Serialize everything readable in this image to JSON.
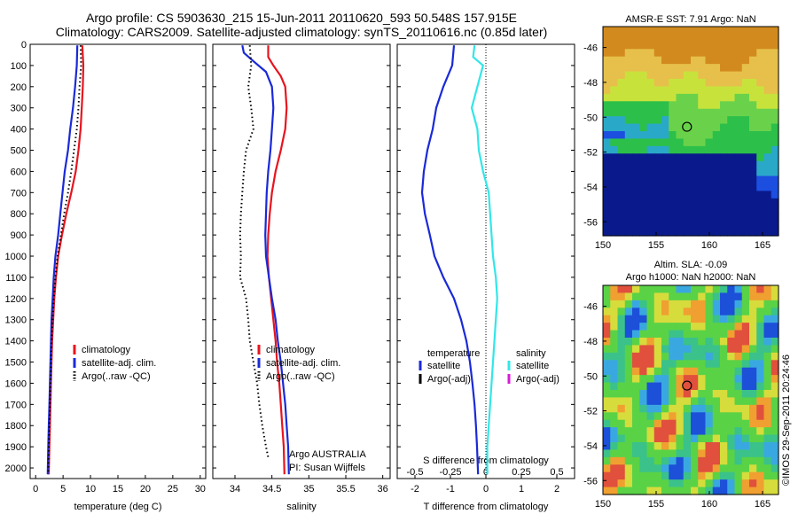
{
  "header": {
    "line1": "Argo profile: CS 5903630_215 15-Jun-2011 20110620_593 50.548S 157.915E",
    "line2": "Climatology: CARS2009. Satellite-adjusted climatology: synTS_20110616.nc (0.85d later)"
  },
  "side_label": "©IMOS 29-Sep-2011 20:24:46",
  "colors": {
    "climatology": "#e8141e",
    "satellite": "#1a2ad8",
    "argo": "#000000",
    "sat_salinity": "#33e6e8",
    "argo_adj_salinity": "#d81ad8"
  },
  "chart_data": [
    {
      "id": "temperature",
      "type": "line",
      "xlabel": "temperature (deg C)",
      "ylabel": "",
      "xlim": [
        -1,
        31
      ],
      "ylim": [
        0,
        2050
      ],
      "y_reversed": true,
      "xticks": [
        "0",
        "5",
        "10",
        "15",
        "20",
        "25",
        "30"
      ],
      "xtick_values": [
        0,
        5,
        10,
        15,
        20,
        25,
        30
      ],
      "yticks": [
        "0",
        "100",
        "200",
        "300",
        "400",
        "500",
        "600",
        "700",
        "800",
        "900",
        "1000",
        "1100",
        "1200",
        "1300",
        "1400",
        "1500",
        "1600",
        "1700",
        "1800",
        "1900",
        "2000"
      ],
      "ytick_values": [
        0,
        100,
        200,
        300,
        400,
        500,
        600,
        700,
        800,
        900,
        1000,
        1100,
        1200,
        1300,
        1400,
        1500,
        1600,
        1700,
        1800,
        1900,
        2000
      ],
      "legend": [
        "climatology",
        "satellite-adj. clim.",
        "Argo(..raw -QC)"
      ],
      "series": [
        {
          "name": "climatology",
          "style": "solid",
          "color": "#e8141e",
          "points": [
            [
              8.5,
              5
            ],
            [
              8.7,
              100
            ],
            [
              8.6,
              200
            ],
            [
              8.4,
              300
            ],
            [
              8.2,
              400
            ],
            [
              7.8,
              500
            ],
            [
              7.3,
              600
            ],
            [
              6.5,
              700
            ],
            [
              5.6,
              800
            ],
            [
              4.8,
              900
            ],
            [
              4.1,
              1000
            ],
            [
              3.7,
              1100
            ],
            [
              3.4,
              1200
            ],
            [
              3.2,
              1300
            ],
            [
              3.0,
              1400
            ],
            [
              2.9,
              1500
            ],
            [
              2.8,
              1600
            ],
            [
              2.7,
              1700
            ],
            [
              2.6,
              1800
            ],
            [
              2.5,
              1900
            ],
            [
              2.4,
              2030
            ]
          ]
        },
        {
          "name": "satellite-adj. clim.",
          "style": "solid",
          "color": "#1a2ad8",
          "points": [
            [
              7.6,
              5
            ],
            [
              7.5,
              100
            ],
            [
              7.2,
              200
            ],
            [
              6.8,
              300
            ],
            [
              6.3,
              400
            ],
            [
              5.9,
              500
            ],
            [
              5.3,
              600
            ],
            [
              4.9,
              700
            ],
            [
              4.5,
              800
            ],
            [
              4.1,
              900
            ],
            [
              3.6,
              1000
            ],
            [
              3.3,
              1100
            ],
            [
              3.1,
              1200
            ],
            [
              2.9,
              1300
            ],
            [
              2.8,
              1400
            ],
            [
              2.7,
              1500
            ],
            [
              2.6,
              1600
            ],
            [
              2.5,
              1700
            ],
            [
              2.4,
              1800
            ],
            [
              2.3,
              1900
            ],
            [
              2.2,
              2030
            ]
          ]
        },
        {
          "name": "Argo(..raw -QC)",
          "style": "dotted",
          "color": "#000000",
          "points": [
            [
              8.2,
              5
            ],
            [
              8.3,
              100
            ],
            [
              8.0,
              200
            ],
            [
              7.8,
              300
            ],
            [
              7.5,
              400
            ],
            [
              7.0,
              500
            ],
            [
              6.5,
              600
            ],
            [
              5.9,
              700
            ],
            [
              5.2,
              800
            ],
            [
              4.6,
              900
            ],
            [
              4.0,
              1000
            ],
            [
              3.6,
              1100
            ],
            [
              3.3,
              1200
            ],
            [
              3.1,
              1300
            ],
            [
              2.9,
              1400
            ],
            [
              2.8,
              1500
            ],
            [
              2.7,
              1600
            ],
            [
              2.6,
              1700
            ],
            [
              2.5,
              1800
            ],
            [
              2.4,
              1900
            ],
            [
              2.3,
              2030
            ]
          ]
        }
      ]
    },
    {
      "id": "salinity",
      "type": "line",
      "xlabel": "salinity",
      "ylabel": "",
      "xlim": [
        33.7,
        36.1
      ],
      "ylim": [
        0,
        2050
      ],
      "y_reversed": true,
      "xticks": [
        "34",
        "34.5",
        "35",
        "35.5",
        "36"
      ],
      "xtick_values": [
        34,
        34.5,
        35,
        35.5,
        36
      ],
      "legend": [
        "climatology",
        "satellite-adj. clim.",
        "Argo(..raw -QC)"
      ],
      "annotations": [
        "Argo AUSTRALIA",
        "PI: Susan Wijffels"
      ],
      "series": [
        {
          "name": "climatology",
          "style": "solid",
          "color": "#e8141e",
          "points": [
            [
              34.45,
              5
            ],
            [
              34.45,
              60
            ],
            [
              34.52,
              100
            ],
            [
              34.62,
              150
            ],
            [
              34.68,
              200
            ],
            [
              34.7,
              300
            ],
            [
              34.68,
              400
            ],
            [
              34.62,
              500
            ],
            [
              34.55,
              600
            ],
            [
              34.5,
              700
            ],
            [
              34.47,
              800
            ],
            [
              34.45,
              900
            ],
            [
              34.44,
              1000
            ],
            [
              34.46,
              1100
            ],
            [
              34.49,
              1200
            ],
            [
              34.52,
              1300
            ],
            [
              34.55,
              1400
            ],
            [
              34.57,
              1500
            ],
            [
              34.6,
              1600
            ],
            [
              34.62,
              1700
            ],
            [
              34.64,
              1800
            ],
            [
              34.66,
              1900
            ],
            [
              34.67,
              2030
            ]
          ]
        },
        {
          "name": "satellite-adj. clim.",
          "style": "solid",
          "color": "#1a2ad8",
          "points": [
            [
              34.1,
              5
            ],
            [
              34.12,
              40
            ],
            [
              34.25,
              80
            ],
            [
              34.42,
              130
            ],
            [
              34.5,
              200
            ],
            [
              34.52,
              300
            ],
            [
              34.5,
              400
            ],
            [
              34.48,
              500
            ],
            [
              34.45,
              600
            ],
            [
              34.43,
              700
            ],
            [
              34.42,
              800
            ],
            [
              34.41,
              900
            ],
            [
              34.42,
              1000
            ],
            [
              34.46,
              1100
            ],
            [
              34.5,
              1200
            ],
            [
              34.55,
              1300
            ],
            [
              34.58,
              1400
            ],
            [
              34.62,
              1500
            ],
            [
              34.65,
              1600
            ],
            [
              34.68,
              1700
            ],
            [
              34.7,
              1800
            ],
            [
              34.72,
              1900
            ],
            [
              34.73,
              2030
            ]
          ]
        },
        {
          "name": "Argo(..raw -QC)",
          "style": "dotted",
          "color": "#000000",
          "points": [
            [
              34.2,
              5
            ],
            [
              34.22,
              100
            ],
            [
              34.18,
              200
            ],
            [
              34.22,
              300
            ],
            [
              34.25,
              400
            ],
            [
              34.15,
              500
            ],
            [
              34.12,
              600
            ],
            [
              34.1,
              700
            ],
            [
              34.08,
              800
            ],
            [
              34.07,
              900
            ],
            [
              34.08,
              1000
            ],
            [
              34.07,
              1100
            ],
            [
              34.15,
              1200
            ],
            [
              34.18,
              1300
            ],
            [
              34.2,
              1400
            ],
            [
              34.25,
              1500
            ],
            [
              34.3,
              1600
            ],
            [
              34.33,
              1700
            ],
            [
              34.37,
              1800
            ],
            [
              34.42,
              1900
            ],
            [
              34.45,
              1950
            ]
          ]
        }
      ]
    },
    {
      "id": "difference",
      "type": "line",
      "xlabel": "T difference from climatology",
      "x2label": "S difference from climatology",
      "xlim": [
        -2.5,
        2.5
      ],
      "x2lim": [
        -0.625,
        0.625
      ],
      "ylim": [
        0,
        2050
      ],
      "y_reversed": true,
      "xticks": [
        "-2",
        "-1",
        "0",
        "1",
        "2"
      ],
      "xtick_values": [
        -2,
        -1,
        0,
        1,
        2
      ],
      "x2ticks": [
        "-0.5",
        "-0.25",
        "0",
        "0.25",
        "0.5"
      ],
      "x2tick_values": [
        -0.5,
        -0.25,
        0,
        0.25,
        0.5
      ],
      "legend_left": {
        "title": "temperature",
        "items": [
          "satellite",
          "Argo(-adj)"
        ]
      },
      "legend_right": {
        "title": "salinity",
        "items": [
          "satellite",
          "Argo(-adj)"
        ]
      },
      "series": [
        {
          "name": "satellite",
          "group": "temperature",
          "style": "solid",
          "color": "#1a2ad8",
          "points": [
            [
              -0.9,
              5
            ],
            [
              -0.95,
              100
            ],
            [
              -1.2,
              200
            ],
            [
              -1.4,
              300
            ],
            [
              -1.5,
              400
            ],
            [
              -1.65,
              500
            ],
            [
              -1.75,
              600
            ],
            [
              -1.8,
              700
            ],
            [
              -1.72,
              800
            ],
            [
              -1.58,
              900
            ],
            [
              -1.45,
              1000
            ],
            [
              -1.2,
              1100
            ],
            [
              -0.9,
              1200
            ],
            [
              -0.7,
              1300
            ],
            [
              -0.55,
              1400
            ],
            [
              -0.45,
              1500
            ],
            [
              -0.38,
              1600
            ],
            [
              -0.32,
              1700
            ],
            [
              -0.28,
              1800
            ],
            [
              -0.25,
              1900
            ],
            [
              -0.22,
              2030
            ]
          ]
        },
        {
          "name": "satellite",
          "group": "salinity",
          "style": "solid",
          "color": "#33e6e8",
          "points": [
            [
              -0.08,
              5
            ],
            [
              -0.09,
              60
            ],
            [
              -0.02,
              100
            ],
            [
              -0.06,
              200
            ],
            [
              -0.1,
              300
            ],
            [
              -0.06,
              400
            ],
            [
              -0.05,
              500
            ],
            [
              -0.02,
              600
            ],
            [
              0.02,
              700
            ],
            [
              0.03,
              800
            ],
            [
              0.04,
              900
            ],
            [
              0.05,
              1000
            ],
            [
              0.07,
              1100
            ],
            [
              0.08,
              1200
            ],
            [
              0.07,
              1300
            ],
            [
              0.06,
              1400
            ],
            [
              0.05,
              1500
            ],
            [
              0.04,
              1600
            ],
            [
              0.03,
              1700
            ],
            [
              0.02,
              1800
            ],
            [
              0.01,
              1900
            ],
            [
              0.01,
              2030
            ]
          ]
        }
      ]
    }
  ],
  "maps": [
    {
      "id": "sst-map",
      "title": "AMSR-E SST: 7.91 Argo: NaN",
      "xticks": [
        "150",
        "155",
        "160",
        "165"
      ],
      "xtick_values": [
        150,
        155,
        160,
        165
      ],
      "yticks": [
        "-46",
        "-48",
        "-50",
        "-52",
        "-54",
        "-56"
      ],
      "ytick_values": [
        -46,
        -48,
        -50,
        -52,
        -54,
        -56
      ],
      "xlim": [
        150,
        166.5
      ],
      "ylim": [
        -56.8,
        -44.8
      ],
      "marker": [
        157.9,
        -50.55
      ]
    },
    {
      "id": "sla-map",
      "title_line1": "Altim. SLA: -0.09",
      "title_line2": "Argo h1000: NaN h2000: NaN",
      "xticks": [
        "150",
        "155",
        "160",
        "165"
      ],
      "xtick_values": [
        150,
        155,
        160,
        165
      ],
      "yticks": [
        "-46",
        "-48",
        "-50",
        "-52",
        "-54",
        "-56"
      ],
      "ytick_values": [
        -46,
        -48,
        -50,
        -52,
        -54,
        -56
      ],
      "xlim": [
        150,
        166.5
      ],
      "ylim": [
        -56.8,
        -44.8
      ],
      "marker": [
        157.9,
        -50.55
      ]
    }
  ]
}
